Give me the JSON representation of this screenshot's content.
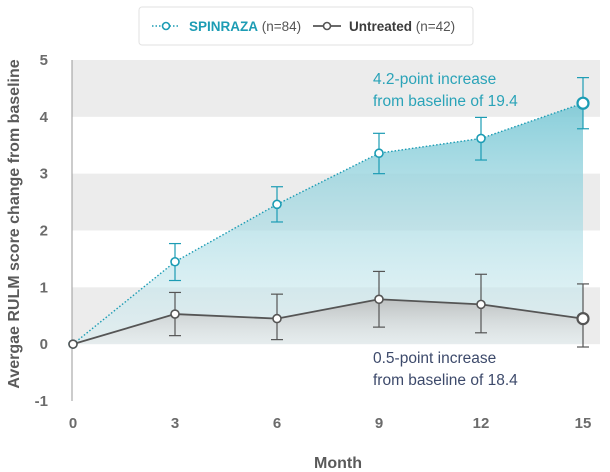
{
  "chart_data": {
    "type": "line",
    "xlabel": "Month",
    "ylabel": "Avergae RULM score change from baseline",
    "x": [
      0,
      3,
      6,
      9,
      12,
      15
    ],
    "xticks": [
      "0",
      "3",
      "6",
      "9",
      "12",
      "15"
    ],
    "yticks": [
      "5",
      "4",
      "3",
      "2",
      "1",
      "0",
      "-1"
    ],
    "xlim": [
      0,
      15
    ],
    "ylim": [
      -1,
      5
    ],
    "legend_position": "top-center",
    "series": [
      {
        "name": "SPINRAZA",
        "n_label": "(n=84)",
        "color": "#1c9cb4",
        "values": [
          0,
          1.45,
          2.46,
          3.36,
          3.62,
          4.24
        ],
        "err_low": [
          0,
          1.12,
          2.15,
          3.0,
          3.24,
          3.79
        ],
        "err_high": [
          0,
          1.77,
          2.77,
          3.71,
          3.99,
          4.69
        ]
      },
      {
        "name": "Untreated",
        "n_label": "(n=42)",
        "color": "#555555",
        "values": [
          0,
          0.53,
          0.45,
          0.79,
          0.7,
          0.45
        ],
        "err_low": [
          0,
          0.15,
          0.08,
          0.3,
          0.2,
          -0.05
        ],
        "err_high": [
          0,
          0.91,
          0.88,
          1.28,
          1.23,
          1.06
        ]
      }
    ],
    "annotations": [
      {
        "line1": "4.2-point increase",
        "line2": "from baseline of 19.4"
      },
      {
        "line1": "0.5-point increase",
        "line2": "from baseline of 18.4"
      }
    ]
  }
}
